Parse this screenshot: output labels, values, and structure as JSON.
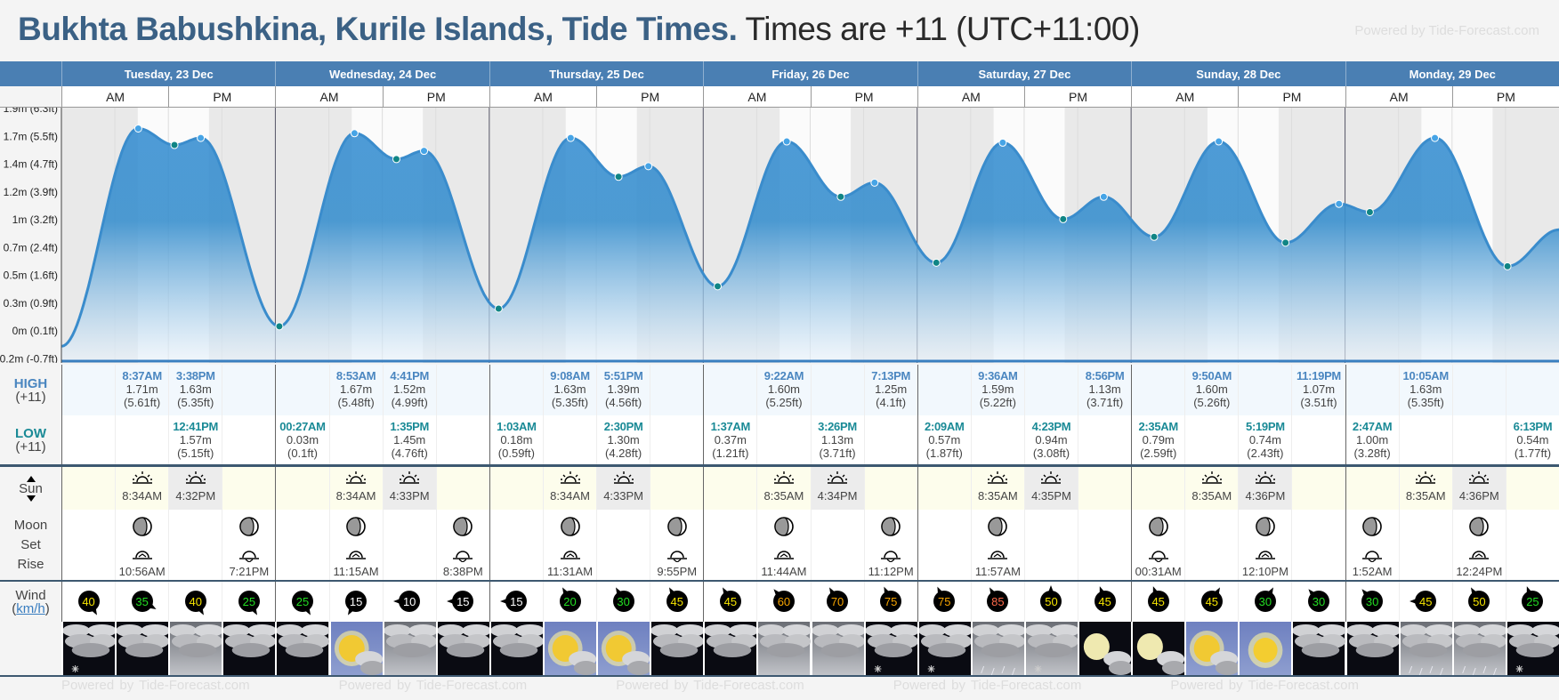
{
  "title": {
    "location": "Bukhta Babushkina, Kurile Islands, Tide Times.",
    "timezone": "Times are +11 (UTC+11:00)"
  },
  "powered": "Powered by Tide-Forecast.com",
  "days": [
    "Tuesday, 23 Dec",
    "Wednesday, 24 Dec",
    "Thursday, 25 Dec",
    "Friday, 26 Dec",
    "Saturday, 27 Dec",
    "Sunday, 28 Dec",
    "Monday, 29 Dec"
  ],
  "am": "AM",
  "pm": "PM",
  "labels": {
    "high": "HIGH",
    "low": "LOW",
    "tz": "(+11)",
    "sun": "Sun",
    "moon": "Moon",
    "set": "Set",
    "rise": "Rise",
    "wind": "Wind",
    "unit": "km/h"
  },
  "yaxis": [
    "1.9m (6.3ft)",
    "1.7m (5.5ft)",
    "1.4m (4.7ft)",
    "1.2m (3.9ft)",
    "1m (3.2ft)",
    "0.7m (2.4ft)",
    "0.5m (1.6ft)",
    "0.3m (0.9ft)",
    "0m (0.1ft)",
    "-0.2m (-0.7ft)"
  ],
  "chart_data": {
    "type": "area",
    "unit": "m",
    "x_hours_from_start": [
      0,
      8.62,
      12.68,
      15.63,
      24.45,
      32.88,
      37.58,
      40.68,
      49.05,
      57.13,
      62.5,
      65.85,
      73.62,
      81.37,
      87.43,
      91.22,
      98.15,
      105.6,
      112.38,
      116.93,
      122.58,
      129.83,
      137.32,
      143.32,
      146.78,
      154.08,
      162.22,
      168
    ],
    "heights": [
      -0.14,
      1.71,
      1.57,
      1.63,
      0.03,
      1.67,
      1.45,
      1.52,
      0.18,
      1.63,
      1.3,
      1.39,
      0.37,
      1.6,
      1.13,
      1.25,
      0.57,
      1.59,
      0.94,
      1.13,
      0.79,
      1.6,
      0.74,
      1.07,
      1.0,
      1.63,
      0.54,
      0.85
    ],
    "types": [
      "s",
      "H",
      "L",
      "H",
      "L",
      "H",
      "L",
      "H",
      "L",
      "H",
      "L",
      "H",
      "L",
      "H",
      "L",
      "H",
      "L",
      "H",
      "L",
      "H",
      "L",
      "H",
      "L",
      "H",
      "L",
      "H",
      "L",
      "e"
    ],
    "ylim": [
      -0.213,
      1.676
    ]
  },
  "high": [
    null,
    {
      "t": "8:37AM",
      "m": "1.71m",
      "f": "(5.61ft)"
    },
    {
      "t": "3:38PM",
      "m": "1.63m",
      "f": "(5.35ft)"
    },
    null,
    null,
    {
      "t": "8:53AM",
      "m": "1.67m",
      "f": "(5.48ft)"
    },
    {
      "t": "4:41PM",
      "m": "1.52m",
      "f": "(4.99ft)"
    },
    null,
    null,
    {
      "t": "9:08AM",
      "m": "1.63m",
      "f": "(5.35ft)"
    },
    {
      "t": "5:51PM",
      "m": "1.39m",
      "f": "(4.56ft)"
    },
    null,
    null,
    {
      "t": "9:22AM",
      "m": "1.60m",
      "f": "(5.25ft)"
    },
    null,
    {
      "t": "7:13PM",
      "m": "1.25m",
      "f": "(4.1ft)"
    },
    null,
    {
      "t": "9:36AM",
      "m": "1.59m",
      "f": "(5.22ft)"
    },
    null,
    {
      "t": "8:56PM",
      "m": "1.13m",
      "f": "(3.71ft)"
    },
    null,
    {
      "t": "9:50AM",
      "m": "1.60m",
      "f": "(5.26ft)"
    },
    null,
    {
      "t": "11:19PM",
      "m": "1.07m",
      "f": "(3.51ft)"
    },
    null,
    {
      "t": "10:05AM",
      "m": "1.63m",
      "f": "(5.35ft)"
    },
    null,
    null
  ],
  "low": [
    null,
    null,
    {
      "t": "12:41PM",
      "m": "1.57m",
      "f": "(5.15ft)"
    },
    null,
    {
      "t": "00:27AM",
      "m": "0.03m",
      "f": "(0.1ft)"
    },
    null,
    {
      "t": "1:35PM",
      "m": "1.45m",
      "f": "(4.76ft)"
    },
    null,
    {
      "t": "1:03AM",
      "m": "0.18m",
      "f": "(0.59ft)"
    },
    null,
    {
      "t": "2:30PM",
      "m": "1.30m",
      "f": "(4.28ft)"
    },
    null,
    {
      "t": "1:37AM",
      "m": "0.37m",
      "f": "(1.21ft)"
    },
    null,
    {
      "t": "3:26PM",
      "m": "1.13m",
      "f": "(3.71ft)"
    },
    null,
    {
      "t": "2:09AM",
      "m": "0.57m",
      "f": "(1.87ft)"
    },
    null,
    {
      "t": "4:23PM",
      "m": "0.94m",
      "f": "(3.08ft)"
    },
    null,
    {
      "t": "2:35AM",
      "m": "0.79m",
      "f": "(2.59ft)"
    },
    null,
    {
      "t": "5:19PM",
      "m": "0.74m",
      "f": "(2.43ft)"
    },
    null,
    {
      "t": "2:47AM",
      "m": "1.00m",
      "f": "(3.28ft)"
    },
    null,
    null,
    {
      "t": "6:13PM",
      "m": "0.54m",
      "f": "(1.77ft)"
    }
  ],
  "sun": [
    [
      "8:34AM",
      "4:32PM"
    ],
    [
      "8:34AM",
      "4:33PM"
    ],
    [
      "8:34AM",
      "4:33PM"
    ],
    [
      "8:35AM",
      "4:34PM"
    ],
    [
      "8:35AM",
      "4:35PM"
    ],
    [
      "8:35AM",
      "4:36PM"
    ],
    [
      "8:35AM",
      "4:36PM"
    ]
  ],
  "moon": [
    null,
    {
      "t": "10:56AM",
      "k": "set"
    },
    null,
    {
      "t": "7:21PM",
      "k": "rise"
    },
    null,
    {
      "t": "11:15AM",
      "k": "set"
    },
    null,
    {
      "t": "8:38PM",
      "k": "rise"
    },
    null,
    {
      "t": "11:31AM",
      "k": "set"
    },
    null,
    {
      "t": "9:55PM",
      "k": "rise"
    },
    null,
    {
      "t": "11:44AM",
      "k": "set"
    },
    null,
    {
      "t": "11:12PM",
      "k": "rise"
    },
    null,
    {
      "t": "11:57AM",
      "k": "set"
    },
    null,
    null,
    {
      "t": "00:31AM",
      "k": "rise"
    },
    null,
    {
      "t": "12:10PM",
      "k": "set"
    },
    null,
    {
      "t": "1:52AM",
      "k": "rise"
    },
    null,
    {
      "t": "12:24PM",
      "k": "set"
    },
    null
  ],
  "wind": [
    {
      "v": "40",
      "c": "#f5e400",
      "r": 60
    },
    {
      "v": "35",
      "c": "#22dd22",
      "r": 30
    },
    {
      "v": "40",
      "c": "#f5e400",
      "r": 60
    },
    {
      "v": "25",
      "c": "#22dd22",
      "r": 60
    },
    {
      "v": "25",
      "c": "#22dd22",
      "r": 60
    },
    {
      "v": "15",
      "c": "#ffffff",
      "r": 120
    },
    {
      "v": "10",
      "c": "#ffffff",
      "r": 180
    },
    {
      "v": "15",
      "c": "#ffffff",
      "r": 180
    },
    {
      "v": "15",
      "c": "#ffffff",
      "r": 180
    },
    {
      "v": "20",
      "c": "#22dd22",
      "r": -120
    },
    {
      "v": "30",
      "c": "#22dd22",
      "r": -120
    },
    {
      "v": "45",
      "c": "#f5e400",
      "r": -120
    },
    {
      "v": "45",
      "c": "#f5e400",
      "r": -120
    },
    {
      "v": "60",
      "c": "#f5a300",
      "r": -130
    },
    {
      "v": "70",
      "c": "#f5a300",
      "r": -120
    },
    {
      "v": "75",
      "c": "#f5a300",
      "r": -115
    },
    {
      "v": "75",
      "c": "#f5a300",
      "r": -115
    },
    {
      "v": "85",
      "c": "#ff6a4a",
      "r": -120
    },
    {
      "v": "50",
      "c": "#f5e400",
      "r": -90
    },
    {
      "v": "45",
      "c": "#f5e400",
      "r": -110
    },
    {
      "v": "45",
      "c": "#f5e400",
      "r": -110
    },
    {
      "v": "45",
      "c": "#f5e400",
      "r": -60
    },
    {
      "v": "30",
      "c": "#22dd22",
      "r": -60
    },
    {
      "v": "30",
      "c": "#22dd22",
      "r": -130
    },
    {
      "v": "30",
      "c": "#22dd22",
      "r": -130
    },
    {
      "v": "45",
      "c": "#f5e400",
      "r": 180
    },
    {
      "v": "50",
      "c": "#f5e400",
      "r": -120
    },
    {
      "v": "25",
      "c": "#22dd22",
      "r": -110
    }
  ],
  "weather": [
    "cloudy-night-snow",
    "cloudy-night",
    "cloudy-gray",
    "cloudy-night",
    "cloudy-night",
    "partly-sunny",
    "cloudy-gray",
    "cloudy-night",
    "cloudy-night",
    "partly-sunny",
    "partly-sunny",
    "cloudy-night",
    "cloudy-night",
    "cloudy-gray",
    "cloudy-gray",
    "cloudy-night-snow",
    "cloudy-night-snow",
    "rain-gray",
    "snow-gray",
    "moon-cloud",
    "moon-cloud",
    "partly-sunny",
    "sunny",
    "cloudy-night",
    "cloudy-night",
    "rain-gray",
    "rain-gray",
    "cloudy-night-snow"
  ]
}
